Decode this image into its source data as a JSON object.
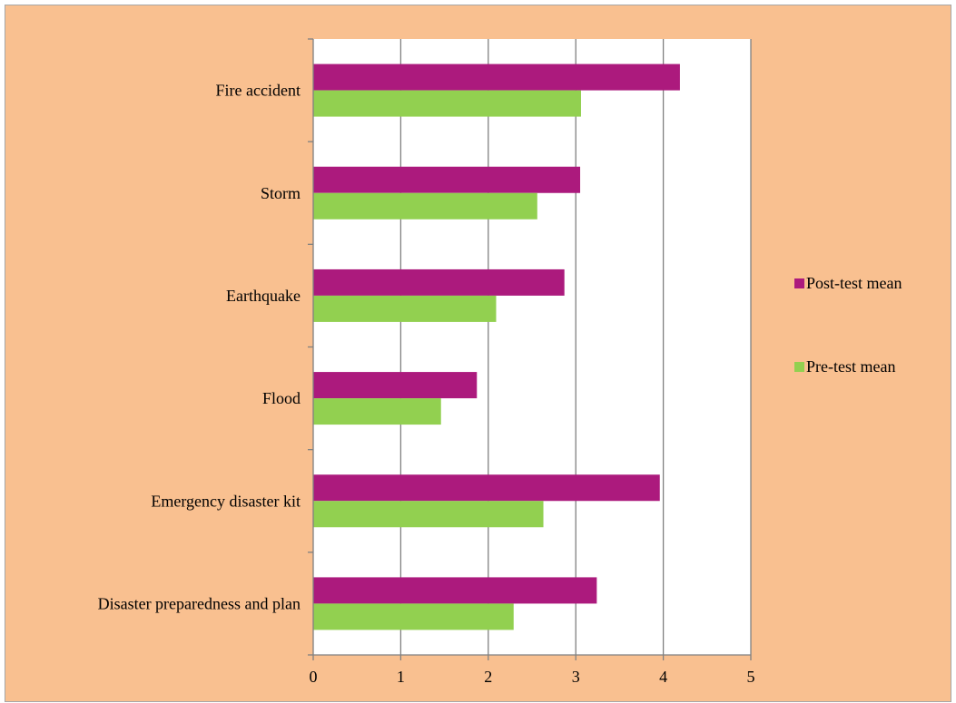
{
  "chart_data": {
    "type": "bar",
    "orientation": "horizontal",
    "categories": [
      "Fire accident",
      "Storm",
      "Earthquake",
      "Flood",
      "Emergency disaster kit",
      "Disaster preparedness and plan"
    ],
    "series": [
      {
        "name": "Post-test mean",
        "color": "#ac1a7d",
        "values": [
          4.19,
          3.05,
          2.87,
          1.87,
          3.96,
          3.24
        ]
      },
      {
        "name": "Pre-test mean",
        "color": "#92d050",
        "values": [
          3.06,
          2.56,
          2.09,
          1.46,
          2.63,
          2.29
        ]
      }
    ],
    "xlim": [
      0,
      5
    ],
    "x_ticks": [
      "0",
      "1",
      "2",
      "3",
      "4",
      "5"
    ],
    "grid": true,
    "legend_position": "right",
    "colors": {
      "chart_background": "#f9c090",
      "plot_background": "#ffffff",
      "gridline": "#808080"
    }
  }
}
